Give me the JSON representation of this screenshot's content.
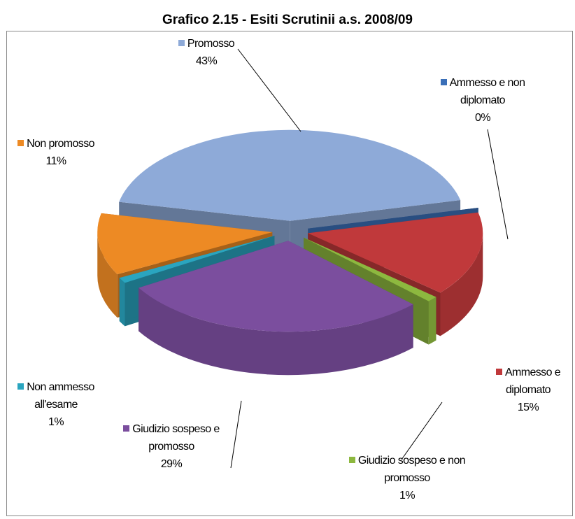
{
  "chart_data": {
    "type": "pie",
    "title": "Grafico 2.15  -  Esiti Scrutinii a.s. 2008/09",
    "categories": [
      "Promosso",
      "Ammesso e non diplomato",
      "Ammesso e diplomato",
      "Giudizio sospeso e non promosso",
      "Giudizio sospeso e promosso",
      "Non ammesso all'esame",
      "Non promosso"
    ],
    "values": [
      43,
      0,
      15,
      1,
      29,
      1,
      11
    ],
    "value_labels": [
      "43%",
      "0%",
      "15%",
      "1%",
      "29%",
      "1%",
      "11%"
    ],
    "colors": [
      "#8eaad8",
      "#3a6fb8",
      "#c0393b",
      "#8db83f",
      "#7b4e9e",
      "#2aa5bf",
      "#ed8a24"
    ]
  }
}
